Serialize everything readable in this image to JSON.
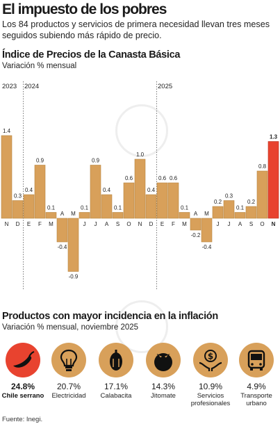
{
  "headline": "El impuesto de los pobres",
  "dek": "Los 84 productos y servicios de primera necesidad llevan tres meses seguidos subiendo más rápido de precio.",
  "chart_section": {
    "title": "Índice de Precios de la Canasta Básica",
    "subtitle": "Variación % mensual"
  },
  "chart_data": {
    "type": "bar",
    "title": "Índice de Precios de la Canasta Básica",
    "subtitle": "Variación % mensual",
    "year_labels": [
      {
        "label": "2023",
        "start_index": 0
      },
      {
        "label": "2024",
        "start_index": 2
      },
      {
        "label": "2025",
        "start_index": 14
      }
    ],
    "categories": [
      "N",
      "D",
      "E",
      "F",
      "M",
      "A",
      "M",
      "J",
      "J",
      "A",
      "S",
      "O",
      "N",
      "D",
      "E",
      "F",
      "M",
      "A",
      "M",
      "J",
      "J",
      "A",
      "S",
      "O",
      "N"
    ],
    "values": [
      1.4,
      0.3,
      0.4,
      0.9,
      0.1,
      -0.4,
      -0.9,
      0.1,
      0.9,
      0.4,
      0.1,
      0.6,
      1.0,
      0.4,
      0.6,
      0.6,
      0.1,
      -0.2,
      -0.4,
      0.2,
      0.3,
      0.1,
      0.2,
      0.8,
      1.3
    ],
    "labels": [
      "1.4",
      "0.3",
      "0.4",
      "0.9",
      "0.1",
      "-0.4",
      "-0.9",
      "0.1",
      "0.9",
      "0.4",
      "0.1",
      "0.6",
      "1.0",
      "0.4",
      "0.6",
      "0.6",
      "0.1",
      "-0.2",
      "-0.4",
      "0.2",
      "0.3",
      "0.1",
      "0.2",
      "0.8",
      "1.3"
    ],
    "highlight_index": 24,
    "colors": {
      "bar": "#d8a05a",
      "bar_border": "#b7843f",
      "highlight": "#e8432f",
      "divider": "#777777"
    },
    "ylim": [
      -0.9,
      1.4
    ],
    "grid": false,
    "legend": "none"
  },
  "products_section": {
    "title": "Productos con mayor incidencia en la inflación",
    "subtitle": "Variación % mensual, noviembre 2025",
    "items": [
      {
        "pct": "24.8%",
        "name": "Chile serrano",
        "icon": "chili-icon",
        "highlight": true
      },
      {
        "pct": "20.7%",
        "name": "Electricidad",
        "icon": "lightbulb-icon",
        "highlight": false
      },
      {
        "pct": "17.1%",
        "name": "Calabacita",
        "icon": "zucchini-icon",
        "highlight": false
      },
      {
        "pct": "14.3%",
        "name": "Jitomate",
        "icon": "tomato-icon",
        "highlight": false
      },
      {
        "pct": "10.9%",
        "name": "Servicios profesionales",
        "icon": "money-hands-icon",
        "highlight": false
      },
      {
        "pct": "4.9%",
        "name": "Transporte urbano",
        "icon": "bus-icon",
        "highlight": false
      }
    ],
    "colors": {
      "circle": "#d8a05a",
      "highlight": "#e8432f"
    }
  },
  "source": "Fuente: Inegi."
}
